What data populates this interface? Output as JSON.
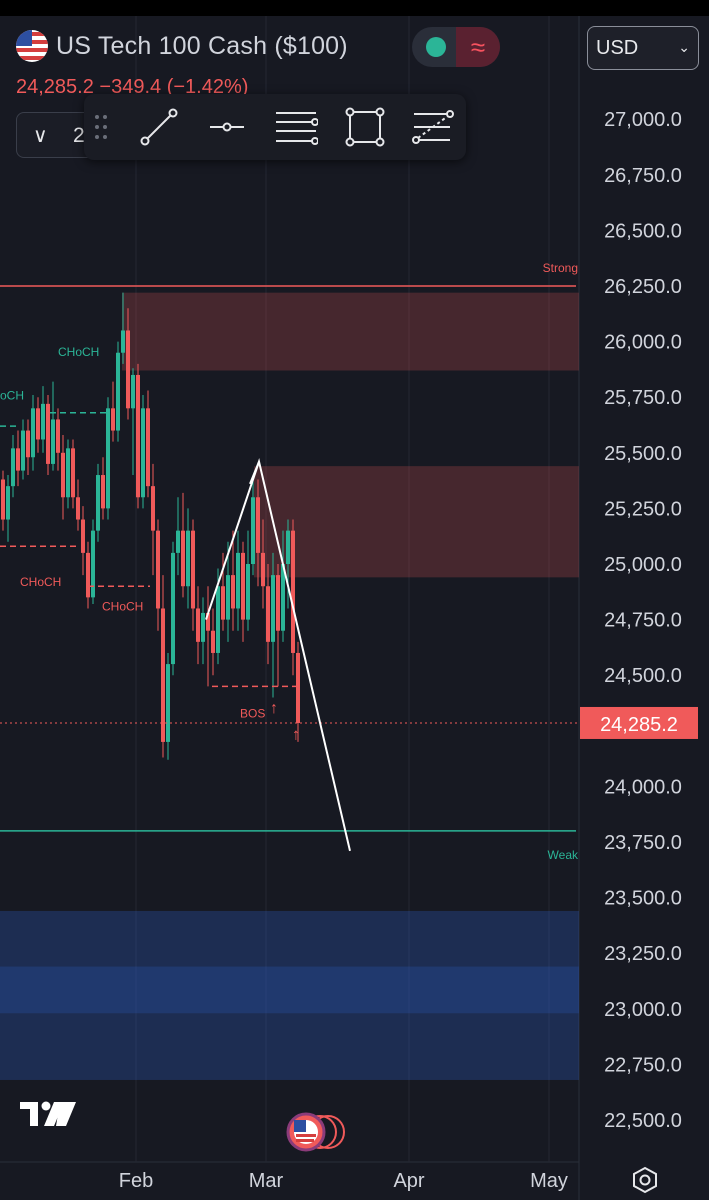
{
  "symbol": {
    "name": "US Tech 100 Cash ($100)",
    "flag_icon": "us-flag-icon",
    "last_line": "24,285.2  −349.4 (−1.42%)",
    "collapse_value": "2"
  },
  "status": {
    "market_dot": "market-open-dot",
    "wave_icon": "wave-icon"
  },
  "currency": {
    "label": "USD"
  },
  "toolbar": {
    "tools": [
      "trend-line-icon",
      "horizontal-ray-icon",
      "parallel-lines-icon",
      "rectangle-icon",
      "fib-retracement-icon"
    ]
  },
  "chart_data": {
    "type": "candlestick",
    "current_price": 24285.2,
    "current_price_label": "24,285.2",
    "y_axis_ticks": [
      27000,
      26750,
      26500,
      26250,
      26000,
      25750,
      25500,
      25250,
      25000,
      24750,
      24500,
      24285.2,
      24000,
      23750,
      23500,
      23250,
      23000,
      22750,
      22500
    ],
    "y_axis_labels": [
      "27,000.0",
      "26,750.0",
      "26,500.0",
      "26,250.0",
      "26,000.0",
      "25,750.0",
      "25,500.0",
      "25,250.0",
      "25,000.0",
      "24,750.0",
      "24,500.0",
      "24,000.0",
      "23,750.0",
      "23,500.0",
      "23,250.0",
      "23,000.0",
      "22,750.0",
      "22,500.0"
    ],
    "ylim": [
      22440,
      27100
    ],
    "x_axis_labels": [
      "Feb",
      "Mar",
      "Apr",
      "May"
    ],
    "levels": [
      {
        "label": "Strong",
        "price": 26250,
        "color": "#f05a5a"
      },
      {
        "label": "Weak",
        "price": 23800,
        "color": "#2bb597"
      }
    ],
    "zones": [
      {
        "top": 26220,
        "bottom": 25870,
        "color": "#f05a5a"
      },
      {
        "top": 25440,
        "bottom": 24940,
        "color": "#f05a5a"
      },
      {
        "top": 23440,
        "bottom": 22680,
        "color": "#2d62d2"
      }
    ],
    "annotations": [
      {
        "text": "CHoCH",
        "color": "#2bb597"
      },
      {
        "text": "oCH",
        "color": "#2bb597"
      },
      {
        "text": "CHoCH",
        "color": "#f05a5a"
      },
      {
        "text": "CHoCH",
        "color": "#f05a5a"
      },
      {
        "text": "BOS",
        "color": "#f05a5a"
      }
    ],
    "colors": {
      "up": "#2bb597",
      "down": "#f05a5a",
      "bg": "#171922"
    }
  }
}
